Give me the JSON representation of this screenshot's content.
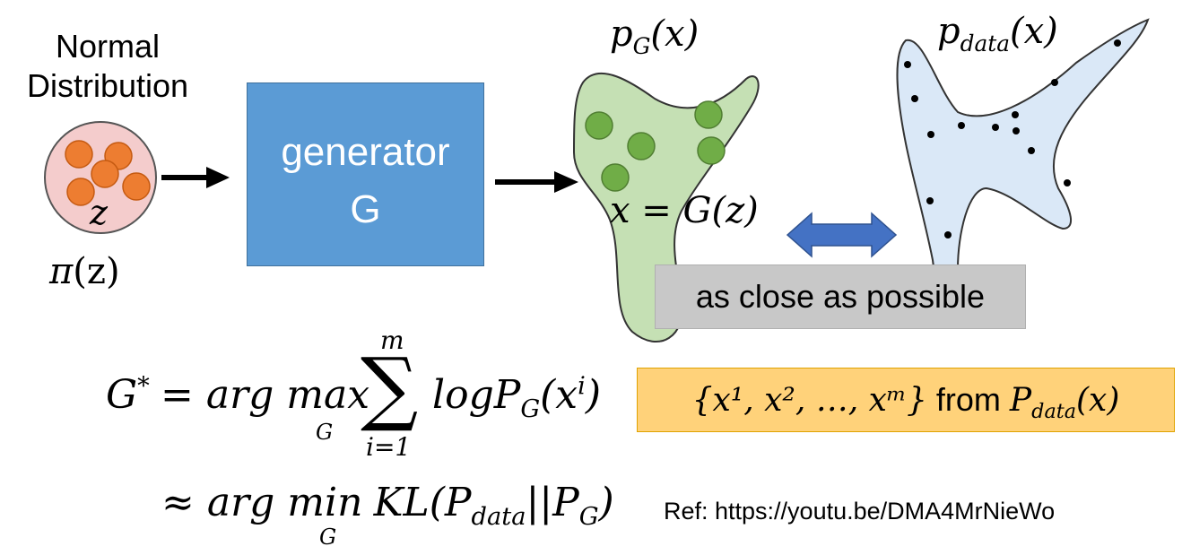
{
  "input": {
    "title": "Normal Distribution",
    "var_z": "z",
    "prior_label_fn": "π",
    "prior_label_arg": "(z)"
  },
  "generator": {
    "line1": "generator",
    "line2": "G",
    "fill": "#5b9bd5"
  },
  "generated": {
    "p": "p",
    "sub": "G",
    "arg": "(x)",
    "mapping": "x = G(z)",
    "fill": "#c5e0b4"
  },
  "data_dist": {
    "p": "p",
    "sub": "data",
    "arg": "(x)",
    "fill": "#dae8f7"
  },
  "compare": {
    "label": "as close as possible"
  },
  "samples": {
    "set": "{x¹, x², …, xᵐ}",
    "from": "from",
    "p": "P",
    "sub": "data",
    "arg": "(x)"
  },
  "equations": {
    "mle": {
      "lhs": "G",
      "lhs_sup": "*",
      "eq": "= ",
      "argmax": "arg max",
      "under": "G",
      "sum_top": "m",
      "sum_bottom": "i=1",
      "body": "logP",
      "body_sub": "G",
      "body_arg": "(x",
      "body_sup": "i",
      "body_close": ")"
    },
    "kl": {
      "approx": "≈ ",
      "argmin": "arg min",
      "under": "G",
      "body": "KL(P",
      "sub1": "data",
      "mid": "||P",
      "sub2": "G",
      "close": ")"
    }
  },
  "reference": "Ref: https://youtu.be/DMA4MrNieWo",
  "colors": {
    "prior_fill": "#f4cccc",
    "orange_dot": "#ed7d31",
    "green_dot": "#70ad47",
    "arrow_double": "#4472c4"
  }
}
